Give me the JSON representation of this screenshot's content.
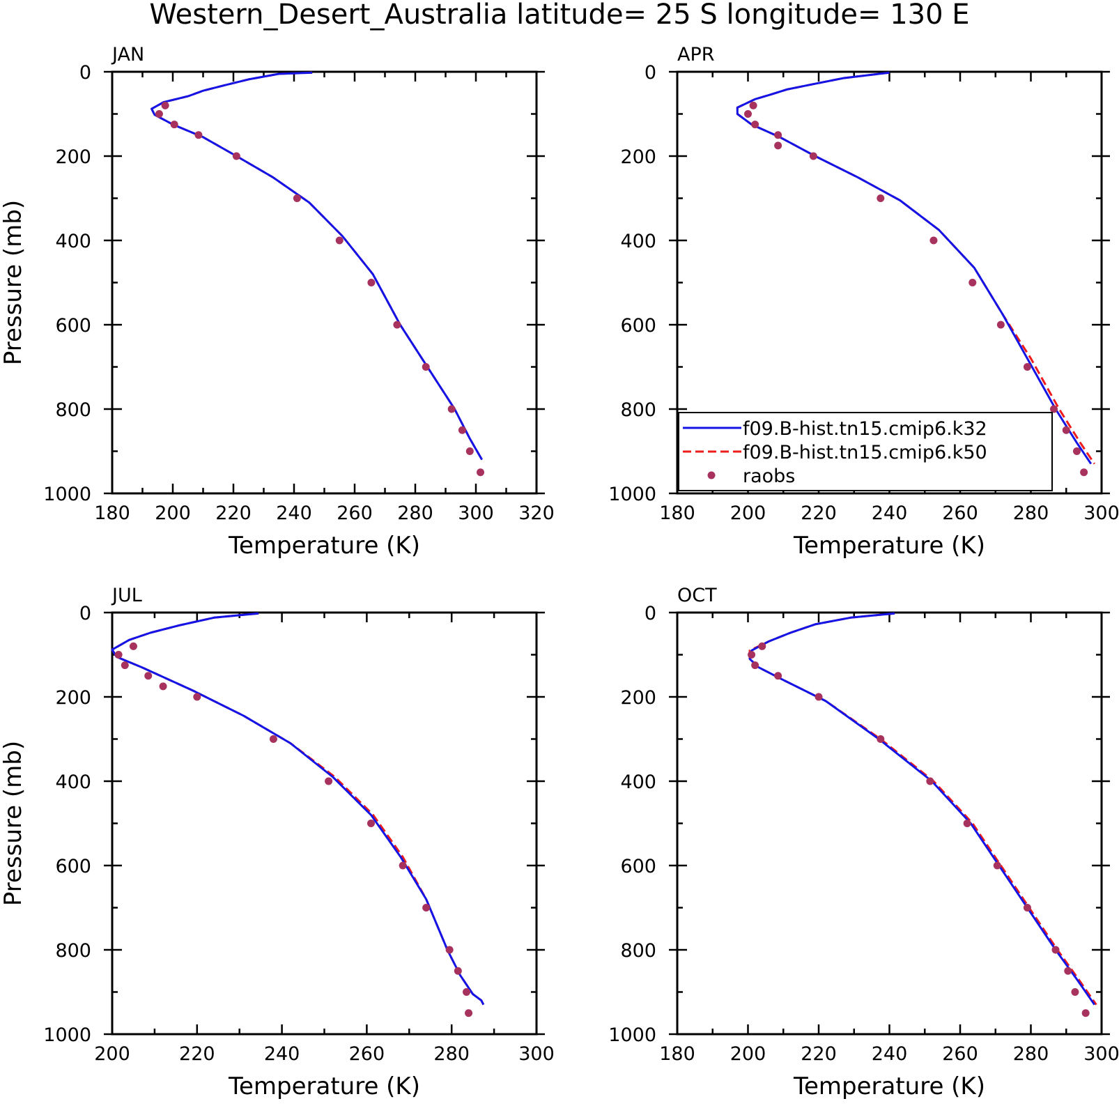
{
  "title": "Western_Desert_Australia  latitude= 25 S longitude= 130 E",
  "legend": {
    "items": [
      {
        "label": "f09.B-hist.tn15.cmip6.k32",
        "color": "#1414e6",
        "style": "solid"
      },
      {
        "label": "f09.B-hist.tn15.cmip6.k50",
        "color": "#ee1c1c",
        "style": "dashed"
      },
      {
        "label": "raobs",
        "color": "#a8325e",
        "style": "marker"
      }
    ]
  },
  "chart_data": [
    {
      "type": "line",
      "panel": "JAN",
      "xlabel": "Temperature (K)",
      "ylabel": "Pressure (mb)",
      "xlim": [
        180,
        320
      ],
      "xticks": [
        180,
        200,
        220,
        240,
        260,
        280,
        300,
        320
      ],
      "ylim": [
        1000,
        0
      ],
      "yticks": [
        0,
        200,
        400,
        600,
        800,
        1000
      ],
      "series": [
        {
          "name": "f09.B-hist.tn15.cmip6.k32",
          "x": [
            246,
            235,
            225,
            217,
            210,
            205,
            197,
            193,
            194,
            200,
            210,
            221,
            233,
            245,
            256,
            266,
            275,
            284,
            293,
            298,
            302
          ],
          "y": [
            2,
            5,
            18,
            32,
            45,
            58,
            72,
            88,
            102,
            125,
            155,
            200,
            250,
            310,
            390,
            480,
            600,
            700,
            800,
            870,
            920
          ]
        },
        {
          "name": "f09.B-hist.tn15.cmip6.k50",
          "x": [
            246,
            235,
            225,
            217,
            210,
            205,
            197,
            193,
            194,
            200,
            210,
            221,
            233,
            245,
            256,
            266,
            275,
            284,
            293,
            298,
            302
          ],
          "y": [
            2,
            5,
            18,
            32,
            45,
            58,
            72,
            88,
            102,
            125,
            155,
            200,
            250,
            310,
            390,
            480,
            600,
            700,
            800,
            870,
            920
          ]
        },
        {
          "name": "raobs",
          "x": [
            197.5,
            195.5,
            200.5,
            208.5,
            221,
            241,
            255,
            265.5,
            274,
            283.5,
            292,
            295.5,
            298,
            301.5
          ],
          "y": [
            80,
            100,
            125,
            150,
            200,
            300,
            400,
            500,
            600,
            700,
            800,
            850,
            900,
            950
          ]
        }
      ]
    },
    {
      "type": "line",
      "panel": "APR",
      "xlabel": "Temperature (K)",
      "ylabel": "",
      "xlim": [
        180,
        300
      ],
      "xticks": [
        180,
        200,
        220,
        240,
        260,
        280,
        300
      ],
      "ylim": [
        1000,
        0
      ],
      "yticks": [
        0,
        200,
        400,
        600,
        800,
        1000
      ],
      "series": [
        {
          "name": "f09.B-hist.tn15.cmip6.k32",
          "x": [
            240,
            227,
            218,
            211,
            206,
            202,
            197,
            197,
            201,
            209,
            219,
            231,
            243,
            254,
            264,
            272,
            279,
            287,
            293,
            297
          ],
          "y": [
            2,
            15,
            30,
            42,
            55,
            65,
            85,
            100,
            125,
            155,
            200,
            250,
            305,
            375,
            465,
            575,
            680,
            800,
            880,
            930
          ]
        },
        {
          "name": "f09.B-hist.tn15.cmip6.k50",
          "x": [
            240,
            227,
            218,
            211,
            206,
            202,
            197,
            197,
            201,
            209,
            219,
            231,
            243,
            254,
            264,
            272,
            280,
            288,
            294,
            298
          ],
          "y": [
            2,
            15,
            30,
            42,
            55,
            65,
            85,
            100,
            125,
            155,
            200,
            250,
            305,
            375,
            465,
            575,
            680,
            800,
            880,
            930
          ]
        },
        {
          "name": "raobs",
          "x": [
            201.5,
            200,
            202,
            208.5,
            208.5,
            218.5,
            237.5,
            252.5,
            263.5,
            271.5,
            279,
            286.5,
            290,
            293,
            295
          ],
          "y": [
            80,
            100,
            125,
            150,
            175,
            200,
            300,
            400,
            500,
            600,
            700,
            800,
            850,
            900,
            950
          ]
        }
      ]
    },
    {
      "type": "line",
      "panel": "JUL",
      "xlabel": "Temperature (K)",
      "ylabel": "Pressure (mb)",
      "xlim": [
        200,
        300
      ],
      "xticks": [
        200,
        220,
        240,
        260,
        280,
        300
      ],
      "ylim": [
        1000,
        0
      ],
      "yticks": [
        0,
        200,
        400,
        600,
        800,
        1000
      ],
      "series": [
        {
          "name": "f09.B-hist.tn15.cmip6.k32",
          "x": [
            234.5,
            224,
            216,
            209,
            204,
            200,
            201,
            207,
            219,
            231,
            242,
            252,
            261,
            268,
            274,
            279,
            282,
            285,
            287,
            287.5
          ],
          "y": [
            2,
            12,
            30,
            48,
            65,
            88,
            105,
            130,
            185,
            245,
            310,
            390,
            480,
            580,
            680,
            800,
            860,
            905,
            920,
            930
          ]
        },
        {
          "name": "f09.B-hist.tn15.cmip6.k50",
          "x": [
            234.5,
            224,
            216,
            209,
            204,
            200,
            201,
            207,
            219,
            231,
            242,
            252.5,
            261.5,
            268.5,
            274,
            279,
            282,
            285,
            287,
            287.5
          ],
          "y": [
            2,
            12,
            30,
            48,
            65,
            88,
            105,
            130,
            185,
            245,
            310,
            390,
            480,
            580,
            680,
            800,
            860,
            905,
            920,
            930
          ]
        },
        {
          "name": "raobs",
          "x": [
            205,
            201.5,
            203,
            208.5,
            212,
            220,
            238,
            251,
            261,
            268.5,
            274,
            279.5,
            281.5,
            283.5,
            284
          ],
          "y": [
            80,
            100,
            125,
            150,
            175,
            200,
            300,
            400,
            500,
            600,
            700,
            800,
            850,
            900,
            950
          ]
        }
      ]
    },
    {
      "type": "line",
      "panel": "OCT",
      "xlabel": "Temperature (K)",
      "ylabel": "",
      "xlim": [
        180,
        300
      ],
      "xticks": [
        180,
        200,
        220,
        240,
        260,
        280,
        300
      ],
      "ylim": [
        1000,
        0
      ],
      "yticks": [
        0,
        200,
        400,
        600,
        800,
        1000
      ],
      "series": [
        {
          "name": "f09.B-hist.tn15.cmip6.k32",
          "x": [
            241.5,
            229,
            219,
            212,
            206,
            201,
            200.5,
            203,
            210,
            222,
            237,
            252,
            263,
            271,
            279,
            287,
            293,
            298
          ],
          "y": [
            2,
            12,
            28,
            48,
            68,
            90,
            110,
            130,
            160,
            210,
            300,
            400,
            500,
            600,
            700,
            800,
            870,
            930
          ]
        },
        {
          "name": "f09.B-hist.tn15.cmip6.k50",
          "x": [
            241.5,
            229,
            219,
            212,
            206,
            200.5,
            200.5,
            203,
            210,
            222,
            237.5,
            252.5,
            263.5,
            271.5,
            279.5,
            287.5,
            293.5,
            298.5
          ],
          "y": [
            2,
            12,
            28,
            48,
            68,
            90,
            110,
            130,
            160,
            210,
            300,
            400,
            500,
            600,
            700,
            800,
            870,
            930
          ]
        },
        {
          "name": "raobs",
          "x": [
            204,
            201,
            202,
            208.5,
            220,
            237.5,
            251.5,
            262,
            270.5,
            279,
            287,
            290.5,
            292.5,
            295.5
          ],
          "y": [
            80,
            100,
            125,
            150,
            200,
            300,
            400,
            500,
            600,
            700,
            800,
            850,
            900,
            950
          ]
        }
      ]
    }
  ]
}
